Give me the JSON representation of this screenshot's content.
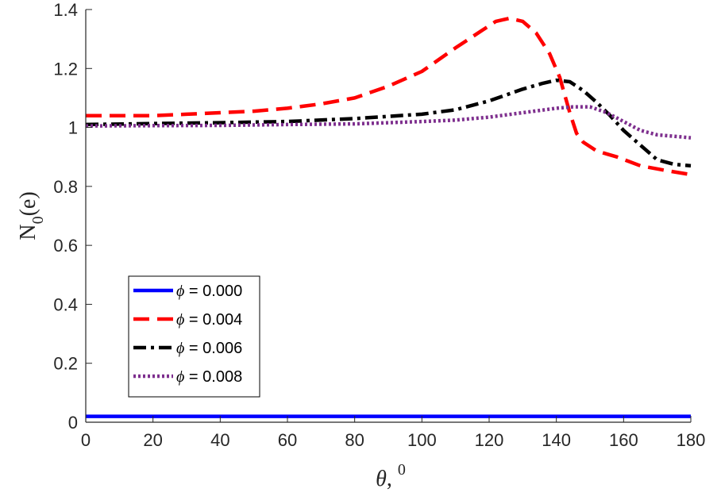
{
  "chart_data": {
    "type": "line",
    "title": "",
    "xlabel_symbol": "θ",
    "xlabel_rest": ", ",
    "xlabel_sup": "0",
    "ylabel_main": "N",
    "ylabel_sub": "0",
    "ylabel_rest": "(e)",
    "xlim": [
      0,
      180
    ],
    "ylim": [
      0,
      1.4
    ],
    "xticks": [
      0,
      20,
      40,
      60,
      80,
      100,
      120,
      140,
      160,
      180
    ],
    "xtick_labels": [
      "0",
      "20",
      "40",
      "60",
      "80",
      "100",
      "120",
      "140",
      "160",
      "180"
    ],
    "yticks": [
      0,
      0.2,
      0.4,
      0.6,
      0.8,
      1.0,
      1.2,
      1.4
    ],
    "ytick_labels": [
      "0",
      "0.2",
      "0.4",
      "0.6",
      "0.8",
      "1",
      "1.2",
      "1.4"
    ],
    "grid": false,
    "legend_position": "lower-left",
    "series": [
      {
        "name_symbol": "ϕ",
        "name_rest": " = 0.000",
        "color": "#0000ff",
        "style": "solid",
        "x": [
          0,
          180
        ],
        "y": [
          0.02,
          0.02
        ]
      },
      {
        "name_symbol": "ϕ",
        "name_rest": " = 0.004",
        "color": "#ff0000",
        "style": "dashed",
        "x": [
          0,
          10,
          20,
          30,
          40,
          50,
          60,
          70,
          80,
          90,
          100,
          110,
          118,
          122,
          126,
          130,
          134,
          138,
          141,
          144,
          146,
          148,
          152,
          158,
          165,
          172,
          180
        ],
        "y": [
          1.04,
          1.04,
          1.04,
          1.045,
          1.05,
          1.055,
          1.065,
          1.08,
          1.1,
          1.14,
          1.19,
          1.27,
          1.33,
          1.36,
          1.37,
          1.36,
          1.32,
          1.25,
          1.17,
          1.05,
          0.98,
          0.95,
          0.92,
          0.9,
          0.87,
          0.855,
          0.84
        ]
      },
      {
        "name_symbol": "ϕ",
        "name_rest": " = 0.006",
        "color": "#000000",
        "style": "dashdot",
        "x": [
          0,
          20,
          40,
          60,
          80,
          100,
          110,
          120,
          130,
          136,
          140,
          144,
          148,
          152,
          156,
          160,
          165,
          170,
          175,
          180
        ],
        "y": [
          1.01,
          1.013,
          1.016,
          1.02,
          1.03,
          1.045,
          1.06,
          1.09,
          1.13,
          1.15,
          1.16,
          1.155,
          1.125,
          1.085,
          1.04,
          0.99,
          0.94,
          0.89,
          0.875,
          0.87
        ]
      },
      {
        "name_symbol": "ϕ",
        "name_rest": " = 0.008",
        "color": "#7e2f8e",
        "style": "dotted",
        "x": [
          0,
          20,
          40,
          60,
          80,
          100,
          110,
          120,
          130,
          140,
          145,
          150,
          155,
          160,
          165,
          170,
          175,
          180
        ],
        "y": [
          1.005,
          1.006,
          1.007,
          1.01,
          1.012,
          1.02,
          1.025,
          1.035,
          1.05,
          1.065,
          1.07,
          1.07,
          1.05,
          1.02,
          0.99,
          0.975,
          0.97,
          0.965
        ]
      }
    ]
  }
}
